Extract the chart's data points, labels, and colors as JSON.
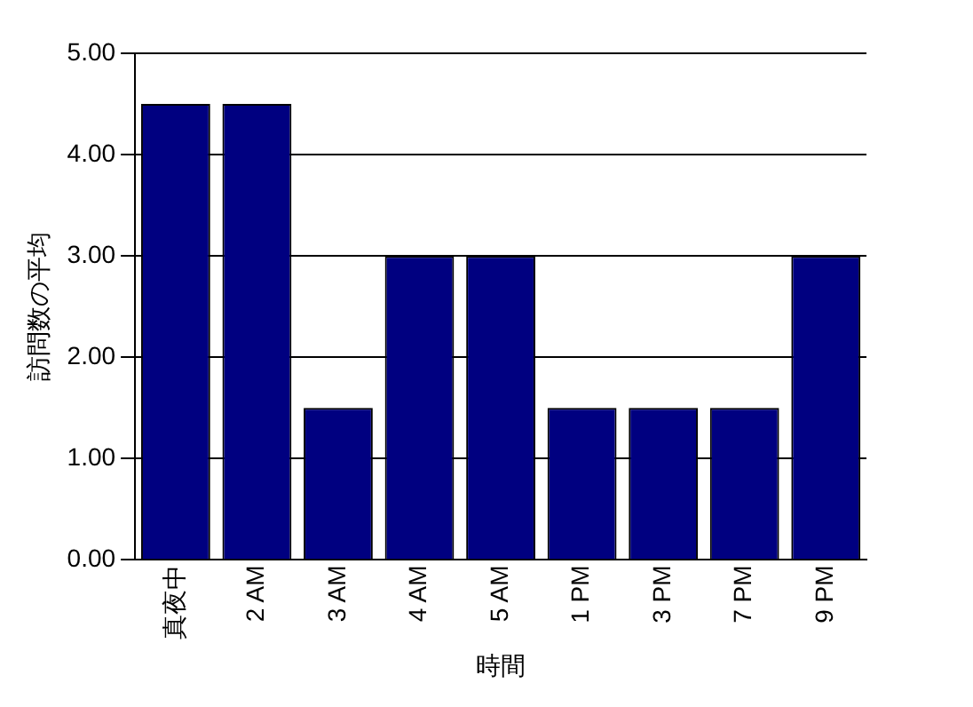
{
  "chart_data": {
    "type": "bar",
    "xlabel": "時間",
    "ylabel": "訪問数の平均",
    "categories": [
      "真夜中",
      "2 AM",
      "3 AM",
      "4 AM",
      "5 AM",
      "1 PM",
      "3 PM",
      "7 PM",
      "9 PM"
    ],
    "values": [
      4.5,
      4.5,
      1.5,
      3,
      3,
      1.5,
      1.5,
      1.5,
      3
    ],
    "color": "#000080",
    "ylim": [
      0,
      5
    ],
    "yticks": [
      {
        "value": 0,
        "label": "0.00"
      },
      {
        "value": 1,
        "label": "1.00"
      },
      {
        "value": 2,
        "label": "2.00"
      },
      {
        "value": 3,
        "label": "3.00"
      },
      {
        "value": 4,
        "label": "4.00"
      },
      {
        "value": 5,
        "label": "5.00"
      }
    ],
    "grid": "y",
    "legend": false
  }
}
